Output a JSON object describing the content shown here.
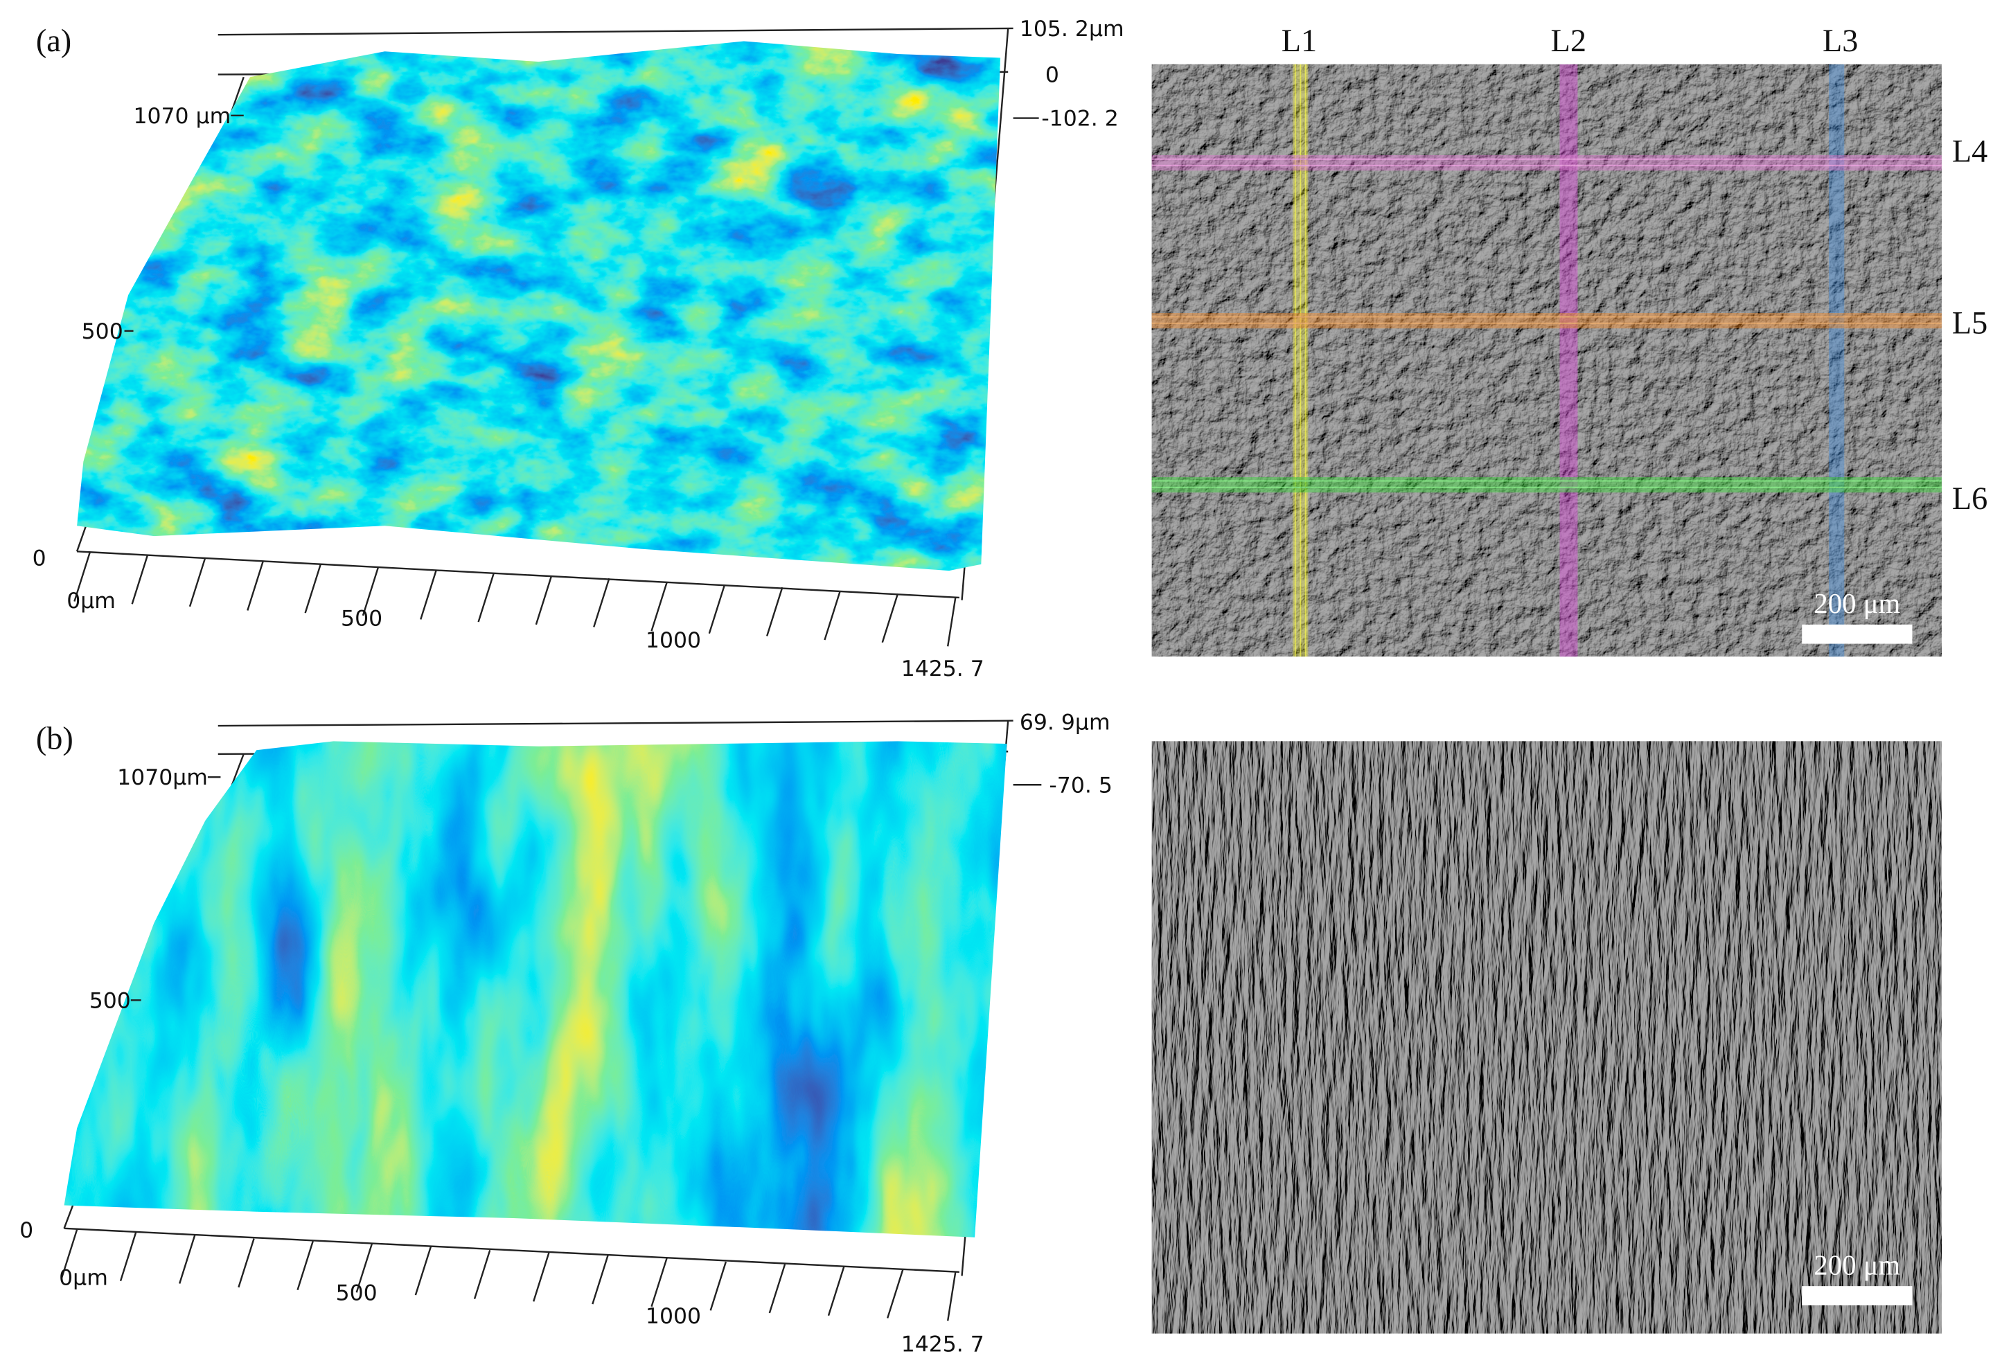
{
  "panels": [
    {
      "label": "(a)",
      "surface": {
        "z_labels": [
          "105. 2μm",
          "0",
          "-102. 2"
        ],
        "y_labels": [
          "1070 μm",
          "500",
          "0"
        ],
        "x_labels": [
          "0μm",
          "500",
          "1000",
          "1425. 7"
        ]
      },
      "micrograph": {
        "lines": [
          "L1",
          "L2",
          "L3",
          "L4",
          "L5",
          "L6"
        ],
        "scale_bar": "200 μm"
      }
    },
    {
      "label": "(b)",
      "surface": {
        "z_labels": [
          "69. 9μm",
          "-70. 5"
        ],
        "y_labels": [
          "1070μm",
          "500",
          "0"
        ],
        "x_labels": [
          "0μm",
          "500",
          "1000",
          "1425. 7"
        ]
      },
      "micrograph": {
        "scale_bar": "200 μm"
      }
    }
  ]
}
